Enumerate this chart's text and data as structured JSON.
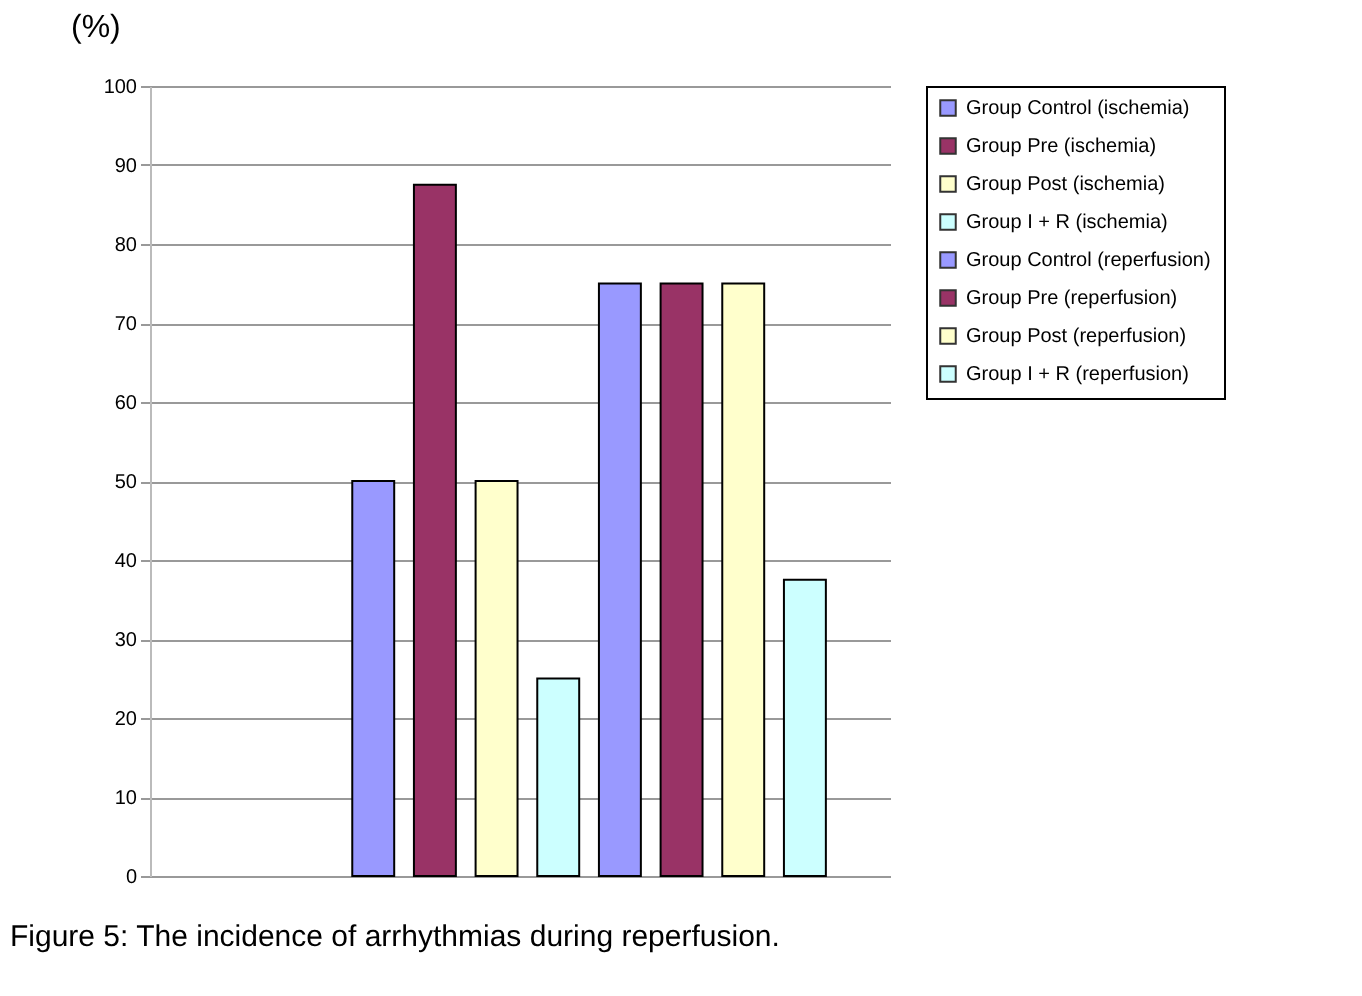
{
  "chart_data": {
    "type": "bar",
    "ylabel": "(%)",
    "categories": [
      null
    ],
    "series": [
      {
        "name": "Group Control (ischemia)",
        "color": "#9999ff",
        "values": [
          50
        ]
      },
      {
        "name": "Group Pre (ischemia)",
        "color": "#993366",
        "values": [
          87.5
        ]
      },
      {
        "name": "Group Post (ischemia)",
        "color": "#ffffcc",
        "values": [
          50
        ]
      },
      {
        "name": "Group I  + R (ischemia)",
        "color": "#ccffff",
        "values": [
          25
        ]
      },
      {
        "name": "Group Control (reperfusion)",
        "color": "#9999ff",
        "values": [
          75
        ]
      },
      {
        "name": "Group Pre (reperfusion)",
        "color": "#993366",
        "values": [
          75
        ]
      },
      {
        "name": "Group Post (reperfusion)",
        "color": "#ffffcc",
        "values": [
          75
        ]
      },
      {
        "name": "Group I + R (reperfusion)",
        "color": "#ccffff",
        "values": [
          37.5
        ]
      }
    ],
    "ylim": [
      0,
      100
    ],
    "yticks": [
      0,
      10,
      20,
      30,
      40,
      50,
      60,
      70,
      80,
      90,
      100
    ],
    "grid": "y",
    "legend": "right",
    "annotations": [
      "Figure 5: The incidence of arrhythmias during reperfusion."
    ]
  }
}
